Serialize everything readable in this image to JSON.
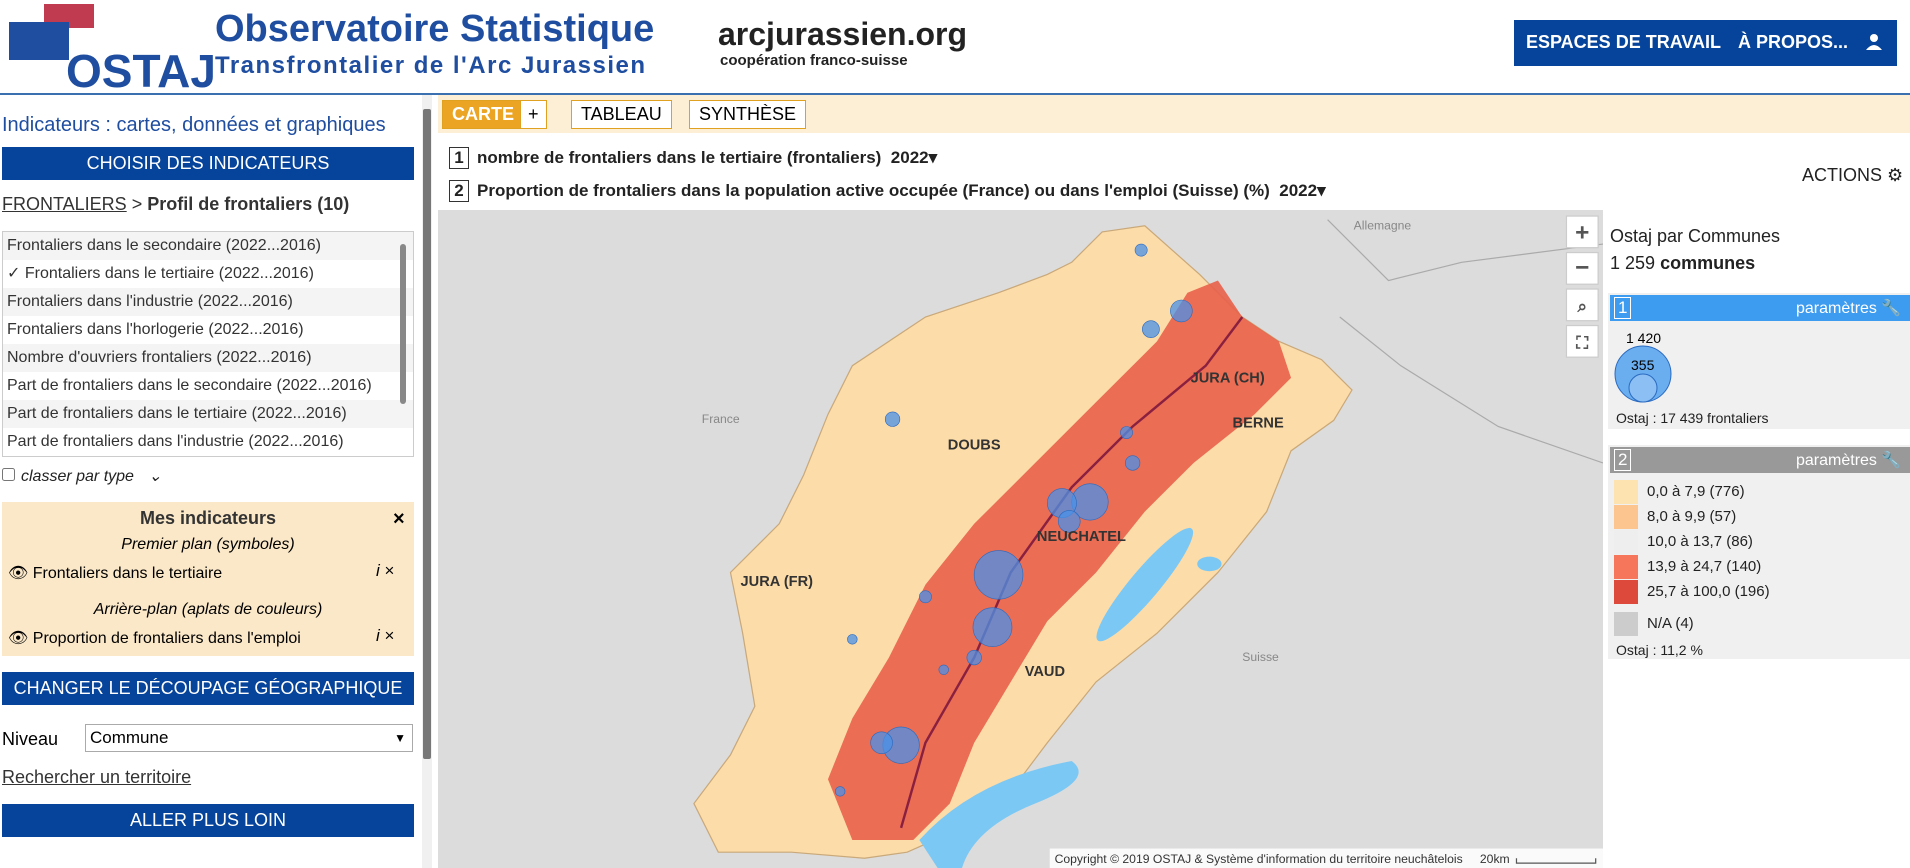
{
  "header": {
    "logo": "OSTAJ",
    "title": "Observatoire Statistique",
    "subtitle": "Transfrontalier de l'Arc Jurassien",
    "partner": "arcjurassien.org",
    "partner_sub": "coopération franco-suisse",
    "nav": [
      "ESPACES DE TRAVAIL",
      "À PROPOS..."
    ]
  },
  "sidebar": {
    "heading": "Indicateurs : cartes, données et graphiques",
    "choose_button": "CHOISIR DES INDICATEURS",
    "breadcrumb": {
      "link": "FRONTALIERS",
      "separator": ">",
      "current": "Profil de frontaliers (10)"
    },
    "list": [
      "Frontaliers dans le secondaire (2022...2016)",
      "✓ Frontaliers dans le tertiaire (2022...2016)",
      "Frontaliers dans l'industrie (2022...2016)",
      "Frontaliers dans l'horlogerie (2022...2016)",
      "Nombre d'ouvriers frontaliers (2022...2016)",
      "Part de frontaliers dans le secondaire (2022...2016)",
      "Part de frontaliers dans le tertiaire (2022...2016)",
      "Part de frontaliers dans l'industrie (2022...2016)"
    ],
    "classify": "classer par type",
    "my_indicators": {
      "title": "Mes indicateurs",
      "groups": [
        {
          "label": "Premier plan (symboles)",
          "item": "Frontaliers dans le tertiaire"
        },
        {
          "label": "Arrière-plan (aplats de couleurs)",
          "item": "Proportion de frontaliers dans l'emploi"
        }
      ]
    },
    "change_button": "CHANGER LE DÉCOUPAGE GÉOGRAPHIQUE",
    "level_label": "Niveau",
    "level_value": "Commune",
    "search_link": "Rechercher un territoire",
    "more_button": "ALLER PLUS LOIN"
  },
  "tabs": [
    "CARTE",
    "+",
    "TABLEAU",
    "SYNTHÈSE"
  ],
  "indicators": [
    {
      "number": "1",
      "label": "nombre de frontaliers dans le tertiaire (frontaliers)",
      "year": "2022"
    },
    {
      "number": "2",
      "label": "Proportion de frontaliers dans la population active occupée (France) ou dans l'emploi (Suisse) (%)",
      "year": "2022"
    }
  ],
  "actions": "ACTIONS",
  "map": {
    "labels": [
      "Allemagne",
      "France",
      "DOUBS",
      "JURA (CH)",
      "BERNE",
      "NEUCHATEL",
      "JURA (FR)",
      "VAUD",
      "Suisse"
    ],
    "copyright": "Copyright © 2019 OSTAJ & Système d'information du territoire neuchâtelois",
    "scale": "20km"
  },
  "legend": {
    "title": "Ostaj par Communes",
    "count": "1 259",
    "count_unit": "communes",
    "panel1": {
      "number": "1",
      "params": "paramètres",
      "max": "1 420",
      "mid": "355",
      "total": "Ostaj : 17 439 frontaliers"
    },
    "panel2": {
      "number": "2",
      "params": "paramètres",
      "classes": [
        {
          "label": "0,0 à 7,9 (776)",
          "color": "#fde3b0"
        },
        {
          "label": "8,0 à 9,9 (57)",
          "color": "#fcc48f"
        },
        {
          "label": "10,0 à 13,7 (86)",
          "color": "#eeeeee"
        },
        {
          "label": "13,9 à 24,7 (140)",
          "color": "#f5765a"
        },
        {
          "label": "25,7 à 100,0 (196)",
          "color": "#dd4a3c"
        },
        {
          "label": "N/A (4)",
          "color": "#cccccc"
        }
      ],
      "average": "Ostaj : 11,2 %"
    }
  }
}
